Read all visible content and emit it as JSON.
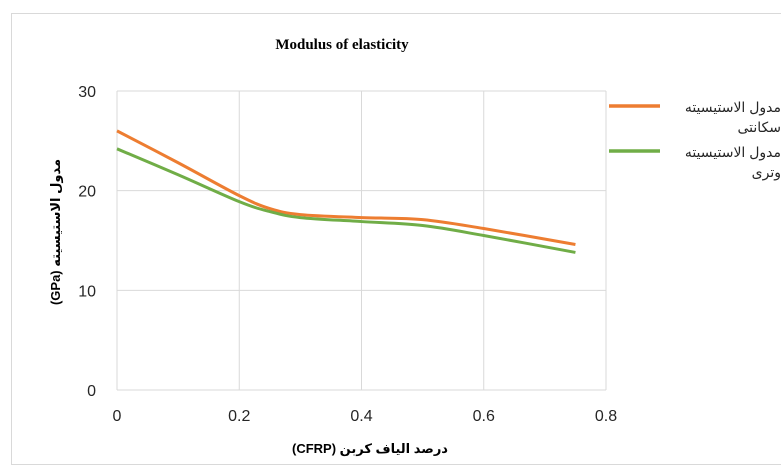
{
  "chart_data": {
    "type": "line",
    "title": "Modulus of elasticity",
    "xlabel": "درصد الیاف کربن   (CFRP)",
    "ylabel": "مدول الاستیسیته   (GPa)",
    "xlim": [
      0,
      0.8
    ],
    "ylim": [
      0,
      30
    ],
    "x_ticks": [
      0,
      0.2,
      0.4,
      0.6,
      0.8
    ],
    "y_ticks": [
      0,
      10,
      20,
      30
    ],
    "grid": true,
    "legend_position": "right",
    "series": [
      {
        "name_lines": [
          "مدول الاستیسیته",
          "سکانتی"
        ],
        "color": "#ED7D31",
        "x": [
          0,
          0.1,
          0.2,
          0.25,
          0.3,
          0.4,
          0.5,
          0.6,
          0.75
        ],
        "y": [
          26,
          22.8,
          19.5,
          18.2,
          17.6,
          17.3,
          17.1,
          16.2,
          14.6
        ]
      },
      {
        "name_lines": [
          "مدول الاستیسیته",
          "وتری"
        ],
        "color": "#70AD47",
        "x": [
          0,
          0.1,
          0.2,
          0.25,
          0.3,
          0.4,
          0.5,
          0.6,
          0.75
        ],
        "y": [
          24.2,
          21.6,
          18.9,
          17.9,
          17.3,
          16.9,
          16.5,
          15.5,
          13.8
        ]
      }
    ]
  }
}
